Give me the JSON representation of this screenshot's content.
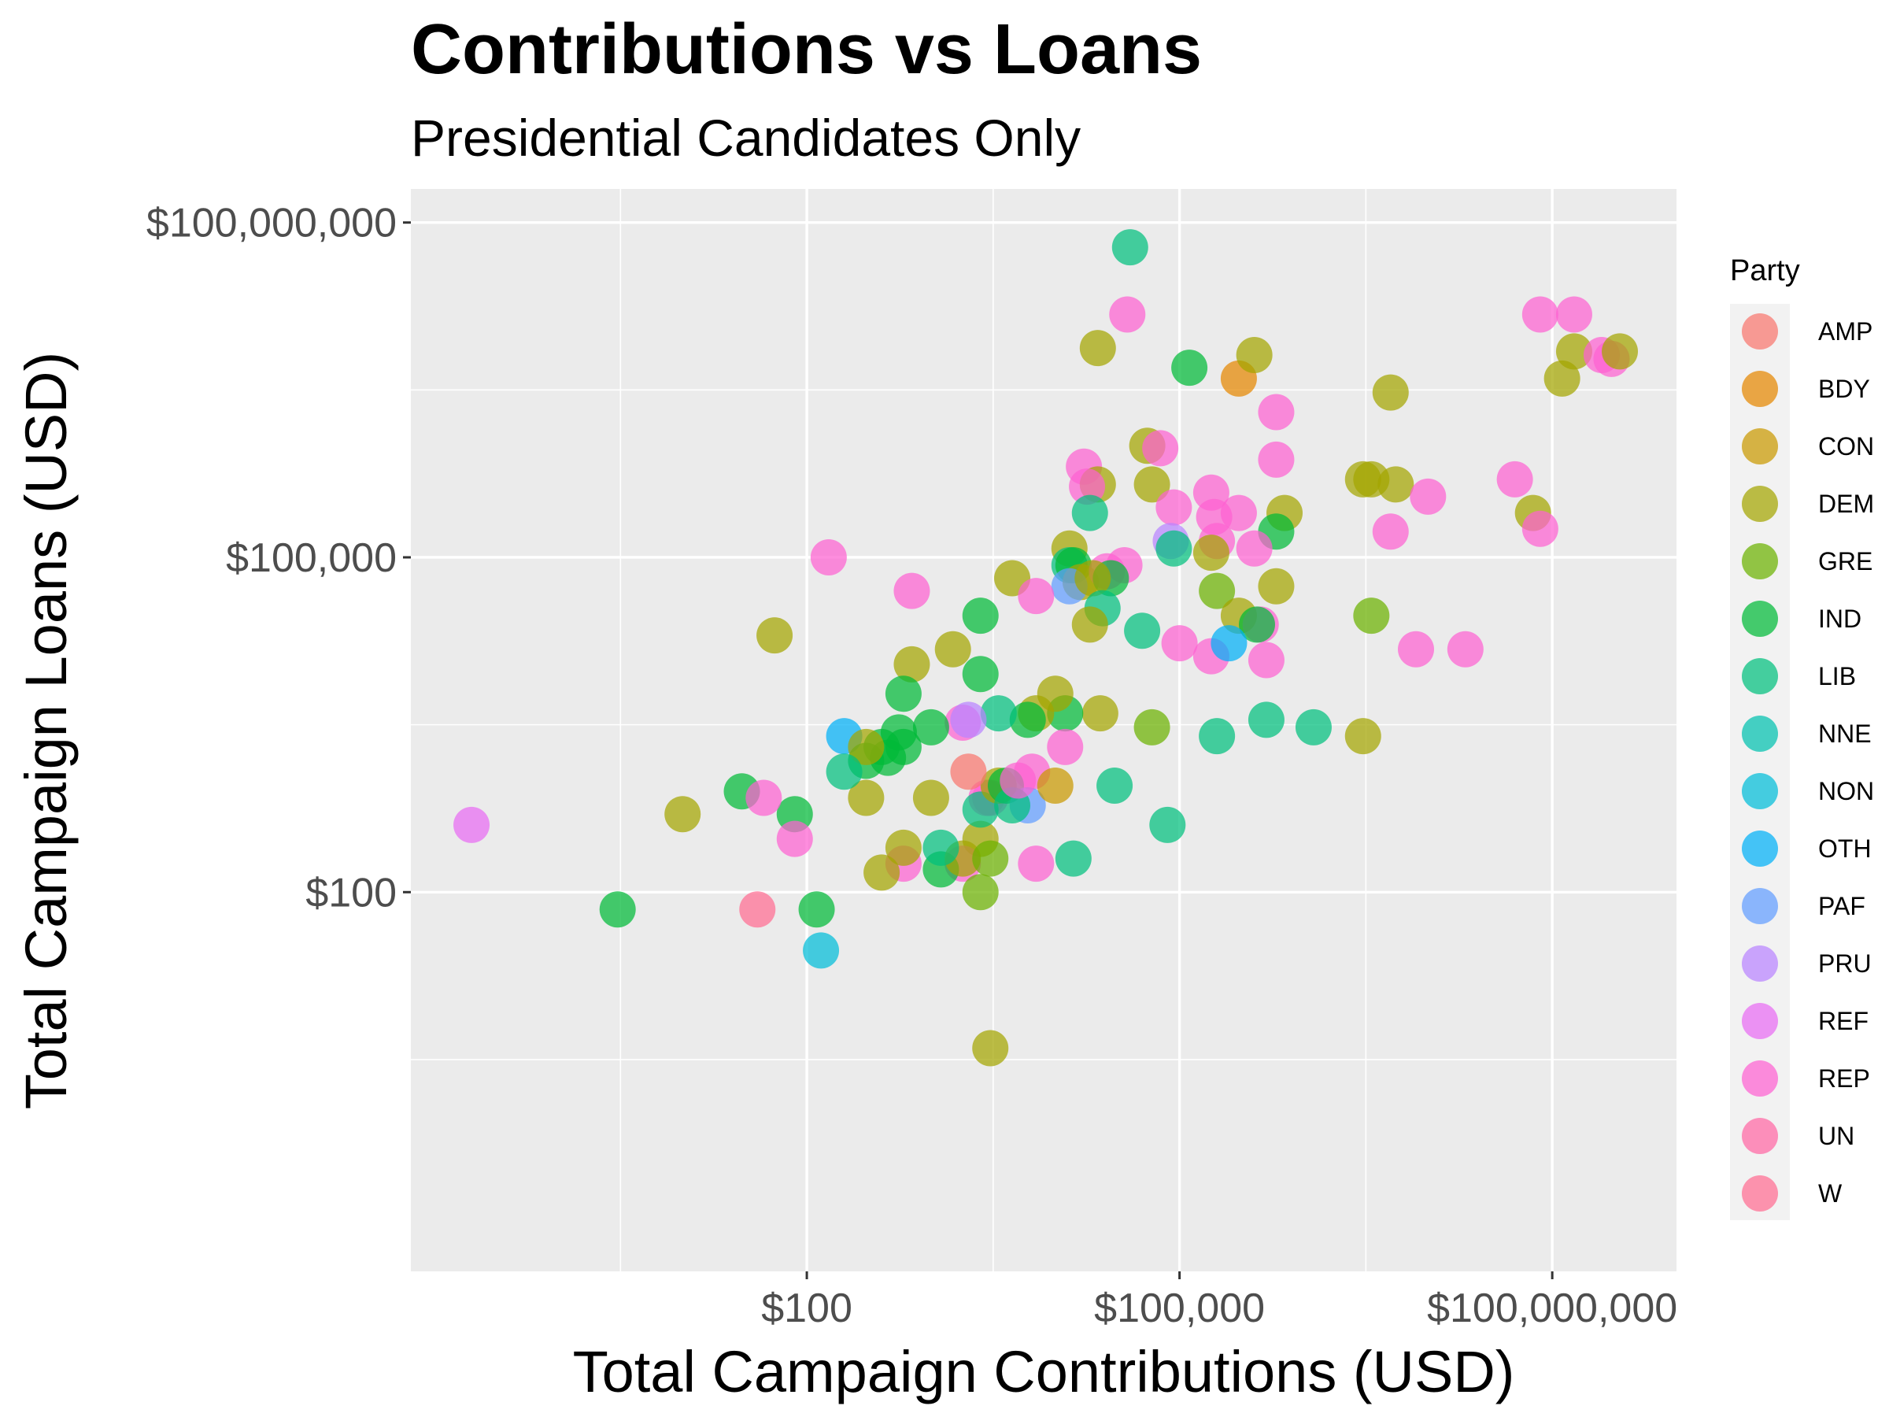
{
  "chart_data": {
    "type": "scatter",
    "title": "Contributions vs Loans",
    "subtitle": "Presidential Candidates Only",
    "xlabel": "Total Campaign Contributions (USD)",
    "ylabel": "Total Campaign Loans (USD)",
    "x_scale": "log10",
    "y_scale": "log10",
    "xlim": [
      0.065,
      1000000000
    ],
    "ylim": [
      0.04,
      200000000
    ],
    "x_ticks": [
      {
        "value": 100,
        "label": "$100"
      },
      {
        "value": 100000,
        "label": "$100,000"
      },
      {
        "value": 100000000,
        "label": "$100,000,000"
      }
    ],
    "y_ticks": [
      {
        "value": 100,
        "label": "$100"
      },
      {
        "value": 100000,
        "label": "$100,000"
      },
      {
        "value": 100000000,
        "label": "$100,000,000"
      }
    ],
    "legend": {
      "title": "Party",
      "position": "right",
      "entries": [
        {
          "name": "AMP",
          "color": "#F8766D"
        },
        {
          "name": "BDY",
          "color": "#E58700"
        },
        {
          "name": "CON",
          "color": "#C99800"
        },
        {
          "name": "DEM",
          "color": "#A3A500"
        },
        {
          "name": "GRE",
          "color": "#6BB100"
        },
        {
          "name": "IND",
          "color": "#00BA38"
        },
        {
          "name": "LIB",
          "color": "#00BF7D"
        },
        {
          "name": "NNE",
          "color": "#00C0AF"
        },
        {
          "name": "NON",
          "color": "#00BCD8"
        },
        {
          "name": "OTH",
          "color": "#00B0F6"
        },
        {
          "name": "PAF",
          "color": "#619CFF"
        },
        {
          "name": "PRU",
          "color": "#B983FF"
        },
        {
          "name": "REF",
          "color": "#E76BF3"
        },
        {
          "name": "REP",
          "color": "#FD61D1"
        },
        {
          "name": "UN",
          "color": "#FF67A4"
        },
        {
          "name": "W",
          "color": "#FF6C91"
        }
      ]
    },
    "points": [
      {
        "party": "LIB",
        "x": 40000,
        "y": 60000000
      },
      {
        "party": "REP",
        "x": 38000,
        "y": 15000000
      },
      {
        "party": "DEM",
        "x": 22000,
        "y": 7500000
      },
      {
        "party": "IND",
        "x": 120000,
        "y": 5000000
      },
      {
        "party": "DEM",
        "x": 55000,
        "y": 1000000
      },
      {
        "party": "REP",
        "x": 70000,
        "y": 950000
      },
      {
        "party": "REP",
        "x": 17000,
        "y": 650000
      },
      {
        "party": "DEM",
        "x": 22000,
        "y": 450000
      },
      {
        "party": "DEM",
        "x": 60000,
        "y": 450000
      },
      {
        "party": "REP",
        "x": 18000,
        "y": 430000
      },
      {
        "party": "LIB",
        "x": 19000,
        "y": 250000
      },
      {
        "party": "REP",
        "x": 90000,
        "y": 280000
      },
      {
        "party": "REP",
        "x": 190000,
        "y": 230000
      },
      {
        "party": "REP",
        "x": 180000,
        "y": 380000
      },
      {
        "party": "PRU",
        "x": 85000,
        "y": 140000
      },
      {
        "party": "LIB",
        "x": 90000,
        "y": 120000
      },
      {
        "party": "DEM",
        "x": 13000,
        "y": 120000
      },
      {
        "party": "LIB",
        "x": 13000,
        "y": 85000
      },
      {
        "party": "IND",
        "x": 14000,
        "y": 85000
      },
      {
        "party": "DEM",
        "x": 16000,
        "y": 60000
      },
      {
        "party": "REP",
        "x": 26000,
        "y": 75000
      },
      {
        "party": "REP",
        "x": 36000,
        "y": 85000
      },
      {
        "party": "PAF",
        "x": 13000,
        "y": 55000
      },
      {
        "party": "IND",
        "x": 28000,
        "y": 65000
      },
      {
        "party": "DEM",
        "x": 4500,
        "y": 65000
      },
      {
        "party": "DEM",
        "x": 20000,
        "y": 65000
      },
      {
        "party": "REP",
        "x": 7000,
        "y": 45000
      },
      {
        "party": "LIB",
        "x": 24000,
        "y": 35000
      },
      {
        "party": "IND",
        "x": 2500,
        "y": 30000
      },
      {
        "party": "DEM",
        "x": 19000,
        "y": 25000
      },
      {
        "party": "LIB",
        "x": 50000,
        "y": 22000
      },
      {
        "party": "REP",
        "x": 100000,
        "y": 17000
      },
      {
        "party": "DEM",
        "x": 1500,
        "y": 15000
      },
      {
        "party": "IND",
        "x": 2500,
        "y": 9000
      },
      {
        "party": "DEM",
        "x": 700,
        "y": 11000
      },
      {
        "party": "IND",
        "x": 600,
        "y": 6000
      },
      {
        "party": "DEM",
        "x": 23000,
        "y": 4000
      },
      {
        "party": "IND",
        "x": 12000,
        "y": 4000
      },
      {
        "party": "DEM",
        "x": 7000,
        "y": 4000
      },
      {
        "party": "IND",
        "x": 6000,
        "y": 3500
      },
      {
        "party": "REP",
        "x": 1800,
        "y": 3300
      },
      {
        "party": "IND",
        "x": 1000,
        "y": 3000
      },
      {
        "party": "IND",
        "x": 550,
        "y": 2700
      },
      {
        "party": "IND",
        "x": 600,
        "y": 2000
      },
      {
        "party": "REP",
        "x": 6500,
        "y": 1200
      },
      {
        "party": "LIB",
        "x": 80000,
        "y": 400
      },
      {
        "party": "DEM",
        "x": 2500,
        "y": 300
      },
      {
        "party": "REP",
        "x": 1800,
        "y": 180
      },
      {
        "party": "REP",
        "x": 7000,
        "y": 180
      },
      {
        "party": "IND",
        "x": 1200,
        "y": 160
      },
      {
        "party": "IND",
        "x": 120,
        "y": 70
      },
      {
        "party": "IND",
        "x": 3,
        "y": 70
      },
      {
        "party": "REF",
        "x": 0.2,
        "y": 400
      },
      {
        "party": "REP",
        "x": 150,
        "y": 100000
      },
      {
        "party": "REP",
        "x": 700,
        "y": 50000
      },
      {
        "party": "DEM",
        "x": 55,
        "y": 20000
      },
      {
        "party": "OTH",
        "x": 200,
        "y": 2500
      },
      {
        "party": "IND",
        "x": 400,
        "y": 2000
      },
      {
        "party": "IND",
        "x": 450,
        "y": 1600
      },
      {
        "party": "IND",
        "x": 300,
        "y": 1500
      },
      {
        "party": "DEM",
        "x": 300,
        "y": 2000
      },
      {
        "party": "DEM",
        "x": 1000,
        "y": 700
      },
      {
        "party": "IND",
        "x": 80,
        "y": 500
      },
      {
        "party": "DEM",
        "x": 10,
        "y": 500
      },
      {
        "party": "IND",
        "x": 30,
        "y": 800
      },
      {
        "party": "REP",
        "x": 45,
        "y": 700
      },
      {
        "party": "REP",
        "x": 80,
        "y": 300
      },
      {
        "party": "DEM",
        "x": 300,
        "y": 700
      },
      {
        "party": "REP",
        "x": 3000,
        "y": 700
      },
      {
        "party": "REP",
        "x": 2800,
        "y": 700
      },
      {
        "party": "LIB",
        "x": 2500,
        "y": 550
      },
      {
        "party": "DEM",
        "x": 1800,
        "y": 200
      },
      {
        "party": "REP",
        "x": 600,
        "y": 180
      },
      {
        "party": "LIB",
        "x": 1200,
        "y": 250
      },
      {
        "party": "DEM",
        "x": 3500,
        "y": 900
      },
      {
        "party": "IND",
        "x": 4000,
        "y": 900
      },
      {
        "party": "PAF",
        "x": 6000,
        "y": 600
      },
      {
        "party": "LIB",
        "x": 4500,
        "y": 600
      },
      {
        "party": "LIB",
        "x": 30000,
        "y": 900
      },
      {
        "party": "CON",
        "x": 10000,
        "y": 900
      },
      {
        "party": "LIB",
        "x": 200,
        "y": 1200
      },
      {
        "party": "DEM",
        "x": 600,
        "y": 250
      },
      {
        "party": "DEM",
        "x": 400,
        "y": 150
      },
      {
        "party": "DEM",
        "x": 10000,
        "y": 6000
      },
      {
        "party": "LIB",
        "x": 3500,
        "y": 4000
      },
      {
        "party": "PRU",
        "x": 2000,
        "y": 3500
      },
      {
        "party": "GRE",
        "x": 60000,
        "y": 3000
      },
      {
        "party": "GRE",
        "x": 3000,
        "y": 200
      },
      {
        "party": "LIB",
        "x": 200000,
        "y": 2500
      },
      {
        "party": "NON",
        "x": 130,
        "y": 30
      },
      {
        "party": "W",
        "x": 40,
        "y": 70
      },
      {
        "party": "REP",
        "x": 12000,
        "y": 2000
      },
      {
        "party": "REP",
        "x": 5000,
        "y": 1000
      },
      {
        "party": "LIB",
        "x": 14000,
        "y": 200
      },
      {
        "party": "GRE",
        "x": 2500,
        "y": 100
      },
      {
        "party": "DEM",
        "x": 3000,
        "y": 4
      },
      {
        "party": "AMP",
        "x": 2000,
        "y": 1200
      },
      {
        "party": "BDY",
        "x": 300000,
        "y": 4000000
      },
      {
        "party": "DEM",
        "x": 400000,
        "y": 6500000
      },
      {
        "party": "DEM",
        "x": 5000000,
        "y": 3000000
      },
      {
        "party": "DEM",
        "x": 150000000,
        "y": 7000000
      },
      {
        "party": "DEM",
        "x": 120000000,
        "y": 4000000
      },
      {
        "party": "REP",
        "x": 80000000,
        "y": 15000000
      },
      {
        "party": "REP",
        "x": 150000000,
        "y": 15000000
      },
      {
        "party": "REP",
        "x": 250000000,
        "y": 6500000
      },
      {
        "party": "REP",
        "x": 300000000,
        "y": 6000000
      },
      {
        "party": "DEM",
        "x": 350000000,
        "y": 7000000
      },
      {
        "party": "REP",
        "x": 600000,
        "y": 2000000
      },
      {
        "party": "REP",
        "x": 600000,
        "y": 750000
      },
      {
        "party": "DEM",
        "x": 3000000,
        "y": 500000
      },
      {
        "party": "DEM",
        "x": 3500000,
        "y": 500000
      },
      {
        "party": "DEM",
        "x": 5500000,
        "y": 450000
      },
      {
        "party": "REP",
        "x": 10000000,
        "y": 350000
      },
      {
        "party": "REP",
        "x": 50000000,
        "y": 500000
      },
      {
        "party": "DEM",
        "x": 70000000,
        "y": 250000
      },
      {
        "party": "DEM",
        "x": 700000,
        "y": 250000
      },
      {
        "party": "REP",
        "x": 300000,
        "y": 250000
      },
      {
        "party": "IND",
        "x": 600000,
        "y": 170000
      },
      {
        "party": "REP",
        "x": 5000000,
        "y": 170000
      },
      {
        "party": "REP",
        "x": 200000,
        "y": 140000
      },
      {
        "party": "DEM",
        "x": 180000,
        "y": 110000
      },
      {
        "party": "REP",
        "x": 400000,
        "y": 120000
      },
      {
        "party": "GRE",
        "x": 200000,
        "y": 50000
      },
      {
        "party": "DEM",
        "x": 600000,
        "y": 55000
      },
      {
        "party": "DEM",
        "x": 300000,
        "y": 30000
      },
      {
        "party": "REP",
        "x": 80000000,
        "y": 180000
      },
      {
        "party": "GRE",
        "x": 3500000,
        "y": 30000
      },
      {
        "party": "REP",
        "x": 8000000,
        "y": 15000
      },
      {
        "party": "REP",
        "x": 20000000,
        "y": 15000
      },
      {
        "party": "LIB",
        "x": 1200000,
        "y": 3000
      },
      {
        "party": "DEM",
        "x": 3000000,
        "y": 2500
      },
      {
        "party": "REP",
        "x": 180000,
        "y": 13000
      },
      {
        "party": "REP",
        "x": 450000,
        "y": 25000
      },
      {
        "party": "IND",
        "x": 420000,
        "y": 25000
      },
      {
        "party": "OTH",
        "x": 250000,
        "y": 17000
      },
      {
        "party": "REP",
        "x": 500000,
        "y": 12000
      },
      {
        "party": "LIB",
        "x": 500000,
        "y": 3500
      }
    ]
  }
}
